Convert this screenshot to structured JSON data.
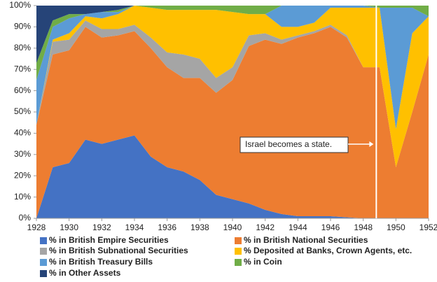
{
  "chart_data": {
    "type": "stacked_area",
    "x": [
      1928,
      1929,
      1930,
      1931,
      1932,
      1933,
      1934,
      1935,
      1936,
      1937,
      1938,
      1939,
      1940,
      1941,
      1942,
      1943,
      1944,
      1945,
      1946,
      1947,
      1948,
      1949,
      1950,
      1951,
      1952
    ],
    "series": [
      {
        "name": "% in British Empire Securities",
        "color": "#4472c4",
        "values": [
          0,
          24,
          26,
          37,
          35,
          37,
          39,
          29,
          24,
          22,
          18,
          11,
          9,
          7,
          4,
          2,
          1,
          1,
          1,
          0.5,
          0,
          0,
          0,
          0,
          0
        ]
      },
      {
        "name": "% in British National Securities",
        "color": "#ed7d31",
        "values": [
          44,
          53,
          53,
          53,
          50,
          49,
          49,
          51,
          47,
          44,
          48,
          48,
          56,
          74,
          80,
          80,
          84,
          86,
          89,
          84.5,
          71,
          71,
          24,
          50,
          77
        ]
      },
      {
        "name": "% in British Subnational Securities",
        "color": "#a5a5a5",
        "values": [
          0,
          6,
          5,
          3,
          4,
          3,
          3,
          5,
          7,
          11,
          9,
          7,
          6,
          5,
          3,
          2,
          1,
          1,
          1,
          1,
          0,
          0,
          0,
          0,
          0
        ]
      },
      {
        "name": "% Deposited at Banks, Crown Agents, etc.",
        "color": "#ffc000",
        "values": [
          0,
          1,
          3,
          2,
          5,
          7,
          9,
          14,
          20,
          21,
          23,
          32,
          26,
          10,
          9,
          6,
          4,
          4,
          8,
          13,
          28,
          28,
          18,
          37,
          18
        ]
      },
      {
        "name": "% in British Treasury Bills",
        "color": "#5b9bd5",
        "values": [
          21,
          6,
          7,
          1,
          3,
          1,
          0,
          0,
          0,
          0,
          0,
          0,
          0,
          0,
          0,
          10,
          10,
          8,
          1,
          1,
          1,
          0,
          57,
          12,
          0
        ]
      },
      {
        "name": "% in Coin",
        "color": "#70ad47",
        "values": [
          8,
          3,
          2,
          0,
          0,
          1,
          0,
          1,
          2,
          2,
          2,
          2,
          3,
          4,
          4,
          0,
          0,
          0,
          0,
          0,
          0,
          1,
          1,
          1,
          5
        ]
      },
      {
        "name": "% in Other Assets",
        "color": "#264478",
        "values": [
          27,
          7,
          4,
          4,
          3,
          2,
          0,
          0,
          0,
          0,
          0,
          0,
          0,
          0,
          0,
          0,
          0,
          0,
          0,
          0,
          0,
          0,
          0,
          0,
          0
        ]
      }
    ],
    "xlim": [
      1928,
      1952
    ],
    "xticks": [
      1928,
      1930,
      1932,
      1934,
      1936,
      1938,
      1940,
      1942,
      1944,
      1946,
      1948,
      1950,
      1952
    ],
    "ylim": [
      0,
      100
    ],
    "yticks": [
      {
        "value": 0,
        "label": "0%"
      },
      {
        "value": 10,
        "label": "10%"
      },
      {
        "value": 20,
        "label": "20%"
      },
      {
        "value": 30,
        "label": "30%"
      },
      {
        "value": 40,
        "label": "40%"
      },
      {
        "value": 50,
        "label": "50%"
      },
      {
        "value": 60,
        "label": "60%"
      },
      {
        "value": 70,
        "label": "70%"
      },
      {
        "value": 80,
        "label": "80%"
      },
      {
        "value": 90,
        "label": "90%"
      },
      {
        "value": 100,
        "label": "100%"
      }
    ],
    "annotation": {
      "text": "Israel becomes a state.",
      "x": 1948.8
    },
    "legend": "bottom"
  }
}
